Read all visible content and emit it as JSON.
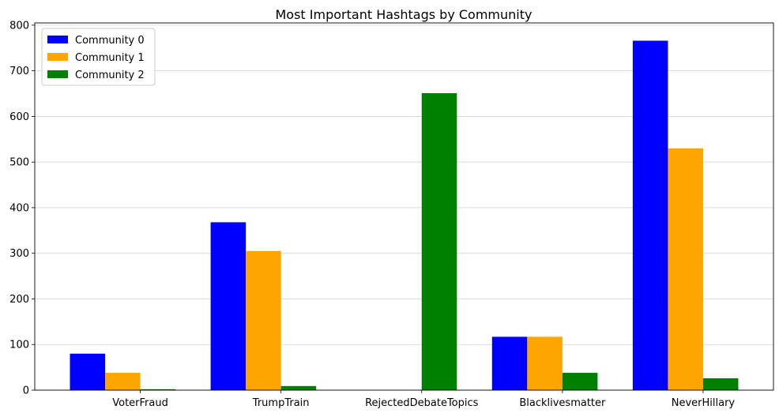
{
  "chart_data": {
    "type": "bar",
    "title": "Most Important Hashtags by Community",
    "xlabel": "",
    "ylabel": "",
    "categories": [
      "VoterFraud",
      "TrumpTrain",
      "RejectedDebateTopics",
      "Blacklivesmatter",
      "NeverHillary"
    ],
    "series": [
      {
        "name": "Community 0",
        "color": "#0000ff",
        "values": [
          80,
          368,
          0,
          117,
          766
        ]
      },
      {
        "name": "Community 1",
        "color": "#ffa500",
        "values": [
          38,
          305,
          0,
          117,
          530
        ]
      },
      {
        "name": "Community 2",
        "color": "#008000",
        "values": [
          2,
          9,
          651,
          38,
          26
        ]
      }
    ],
    "ylim": [
      0,
      805
    ],
    "yticks": [
      0,
      100,
      200,
      300,
      400,
      500,
      600,
      700,
      800
    ],
    "grid": "y",
    "legend": "top-left"
  }
}
